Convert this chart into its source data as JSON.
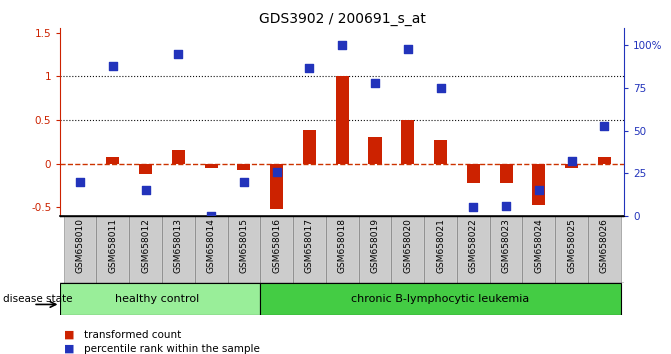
{
  "title": "GDS3902 / 200691_s_at",
  "categories": [
    "GSM658010",
    "GSM658011",
    "GSM658012",
    "GSM658013",
    "GSM658014",
    "GSM658015",
    "GSM658016",
    "GSM658017",
    "GSM658018",
    "GSM658019",
    "GSM658020",
    "GSM658021",
    "GSM658022",
    "GSM658023",
    "GSM658024",
    "GSM658025",
    "GSM658026"
  ],
  "red_bars": [
    0.0,
    0.08,
    -0.12,
    0.16,
    -0.05,
    -0.07,
    -0.52,
    0.38,
    1.0,
    0.3,
    0.5,
    0.27,
    -0.22,
    -0.22,
    -0.48,
    -0.05,
    0.07
  ],
  "blue_dot_percentile": [
    20,
    88,
    15,
    95,
    0,
    20,
    26,
    87,
    100,
    78,
    98,
    75,
    5,
    6,
    15,
    32,
    53
  ],
  "n_healthy": 6,
  "n_leukemia": 11,
  "ylim_left": [
    -0.6,
    1.55
  ],
  "ylim_right": [
    0,
    110
  ],
  "yticks_left": [
    -0.5,
    0.0,
    0.5,
    1.0,
    1.5
  ],
  "yticks_right": [
    0,
    25,
    50,
    75,
    100
  ],
  "ytick_labels_right": [
    "0",
    "25",
    "50",
    "75",
    "100%"
  ],
  "ytick_labels_left": [
    "-0.5",
    "0",
    "0.5",
    "1",
    "1.5"
  ],
  "red_color": "#cc2200",
  "blue_color": "#2233bb",
  "healthy_bg": "#99ee99",
  "leukemia_bg": "#44cc44",
  "cat_bg": "#cccccc",
  "cat_border": "#999999",
  "zero_line_color": "#cc3300",
  "dotted_line_color": "#111111",
  "bar_width": 0.4,
  "dot_size": 30,
  "disease_state_label": "disease state",
  "healthy_label": "healthy control",
  "leukemia_label": "chronic B-lymphocytic leukemia",
  "legend_red": "transformed count",
  "legend_blue": "percentile rank within the sample"
}
